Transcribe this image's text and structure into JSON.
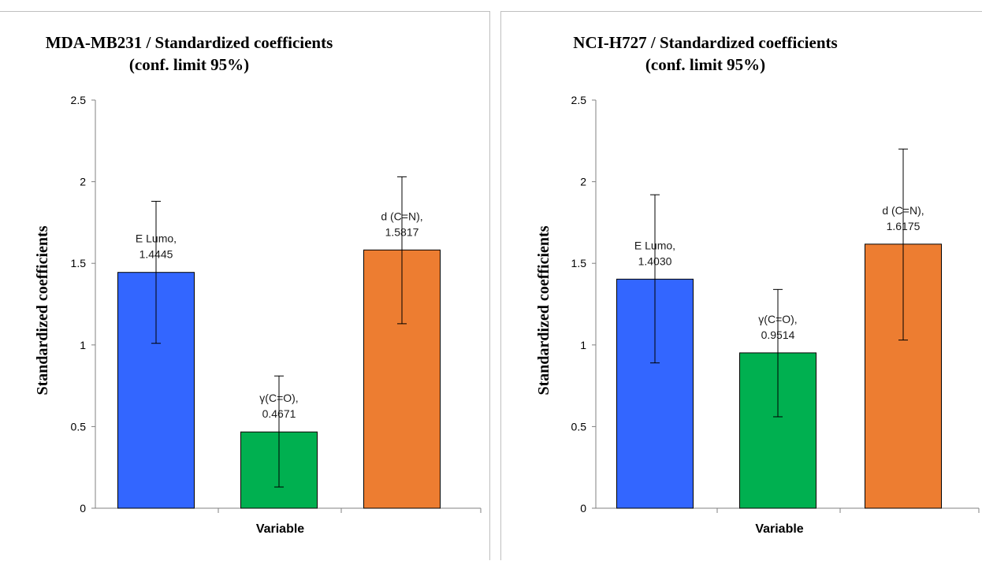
{
  "chart_data": [
    {
      "type": "bar",
      "title_lines": [
        "MDA-MB231 / Standardized coefficients",
        "(conf. limit 95%)"
      ],
      "xlabel": "Variable",
      "ylabel": "Standardized coefficients",
      "ylim": [
        0,
        2.5
      ],
      "yticks": [
        "0",
        "0.5",
        "1",
        "1.5",
        "2",
        "2.5"
      ],
      "ytick_values": [
        0,
        0.5,
        1,
        1.5,
        2,
        2.5
      ],
      "grid": false,
      "bars": [
        {
          "value": 1.4445,
          "err_low": 1.01,
          "err_high": 1.88,
          "color": "#3366ff",
          "label_lines": [
            "E Lumo,",
            "1.4445"
          ]
        },
        {
          "value": 0.4671,
          "err_low": 0.13,
          "err_high": 0.81,
          "color": "#00b050",
          "label_lines": [
            "γ(C=O),",
            "0.4671"
          ]
        },
        {
          "value": 1.5817,
          "err_low": 1.13,
          "err_high": 2.03,
          "color": "#ed7d31",
          "label_lines": [
            "d (C=N),",
            "1.5817"
          ]
        }
      ]
    },
    {
      "type": "bar",
      "title_lines": [
        "NCI-H727 / Standardized coefficients",
        "(conf. limit 95%)"
      ],
      "xlabel": "Variable",
      "ylabel": "Standardized coefficients",
      "ylim": [
        0,
        2.5
      ],
      "yticks": [
        "0",
        "0.5",
        "1",
        "1.5",
        "2",
        "2.5"
      ],
      "ytick_values": [
        0,
        0.5,
        1,
        1.5,
        2,
        2.5
      ],
      "grid": false,
      "bars": [
        {
          "value": 1.403,
          "err_low": 0.89,
          "err_high": 1.92,
          "color": "#3366ff",
          "label_lines": [
            "E Lumo,",
            "1.4030"
          ]
        },
        {
          "value": 0.9514,
          "err_low": 0.56,
          "err_high": 1.34,
          "color": "#00b050",
          "label_lines": [
            "γ(C=O),",
            "0.9514"
          ]
        },
        {
          "value": 1.6175,
          "err_low": 1.03,
          "err_high": 2.2,
          "color": "#ed7d31",
          "label_lines": [
            "d (C=N),",
            "1.6175"
          ]
        }
      ]
    }
  ]
}
